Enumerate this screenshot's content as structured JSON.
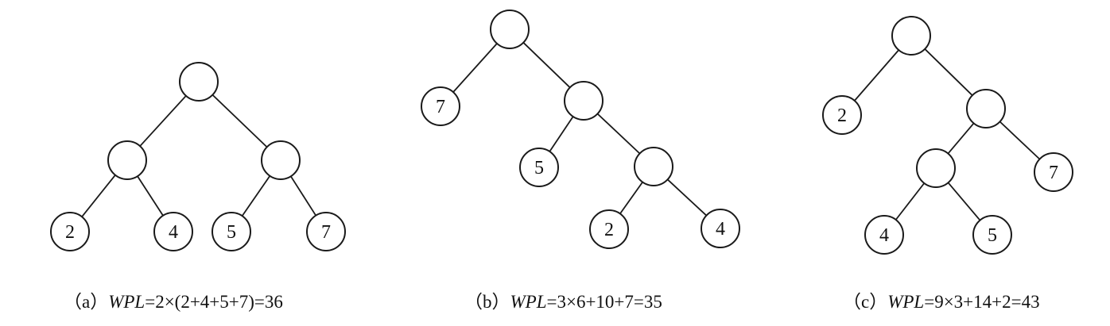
{
  "diagrams": [
    {
      "id": "a",
      "caption": {
        "tag": "（a）",
        "wpl": "WPL",
        "formula": "=2×(2+4+5+7)=36"
      },
      "nodes": [
        {
          "id": "a-root",
          "label": ""
        },
        {
          "id": "a-l",
          "label": ""
        },
        {
          "id": "a-r",
          "label": ""
        },
        {
          "id": "a-ll",
          "label": "2"
        },
        {
          "id": "a-lr",
          "label": "4"
        },
        {
          "id": "a-rl",
          "label": "5"
        },
        {
          "id": "a-rr",
          "label": "7"
        }
      ],
      "edges": [
        [
          "a-root",
          "a-l"
        ],
        [
          "a-root",
          "a-r"
        ],
        [
          "a-l",
          "a-ll"
        ],
        [
          "a-l",
          "a-lr"
        ],
        [
          "a-r",
          "a-rl"
        ],
        [
          "a-r",
          "a-rr"
        ]
      ]
    },
    {
      "id": "b",
      "caption": {
        "tag": "（b）",
        "wpl": "WPL",
        "formula": "=3×6+10+7=35"
      },
      "nodes": [
        {
          "id": "b-root",
          "label": ""
        },
        {
          "id": "b-7",
          "label": "7"
        },
        {
          "id": "b-n1",
          "label": ""
        },
        {
          "id": "b-5",
          "label": "5"
        },
        {
          "id": "b-n2",
          "label": ""
        },
        {
          "id": "b-2",
          "label": "2"
        },
        {
          "id": "b-4",
          "label": "4"
        }
      ],
      "edges": [
        [
          "b-root",
          "b-7"
        ],
        [
          "b-root",
          "b-n1"
        ],
        [
          "b-n1",
          "b-5"
        ],
        [
          "b-n1",
          "b-n2"
        ],
        [
          "b-n2",
          "b-2"
        ],
        [
          "b-n2",
          "b-4"
        ]
      ]
    },
    {
      "id": "c",
      "caption": {
        "tag": "（c）",
        "wpl": "WPL",
        "formula": "=9×3+14+2=43"
      },
      "nodes": [
        {
          "id": "c-root",
          "label": ""
        },
        {
          "id": "c-2",
          "label": "2"
        },
        {
          "id": "c-n1",
          "label": ""
        },
        {
          "id": "c-n2",
          "label": ""
        },
        {
          "id": "c-7",
          "label": "7"
        },
        {
          "id": "c-4",
          "label": "4"
        },
        {
          "id": "c-5",
          "label": "5"
        }
      ],
      "edges": [
        [
          "c-root",
          "c-2"
        ],
        [
          "c-root",
          "c-n1"
        ],
        [
          "c-n1",
          "c-n2"
        ],
        [
          "c-n1",
          "c-7"
        ],
        [
          "c-n2",
          "c-4"
        ],
        [
          "c-n2",
          "c-5"
        ]
      ]
    }
  ]
}
